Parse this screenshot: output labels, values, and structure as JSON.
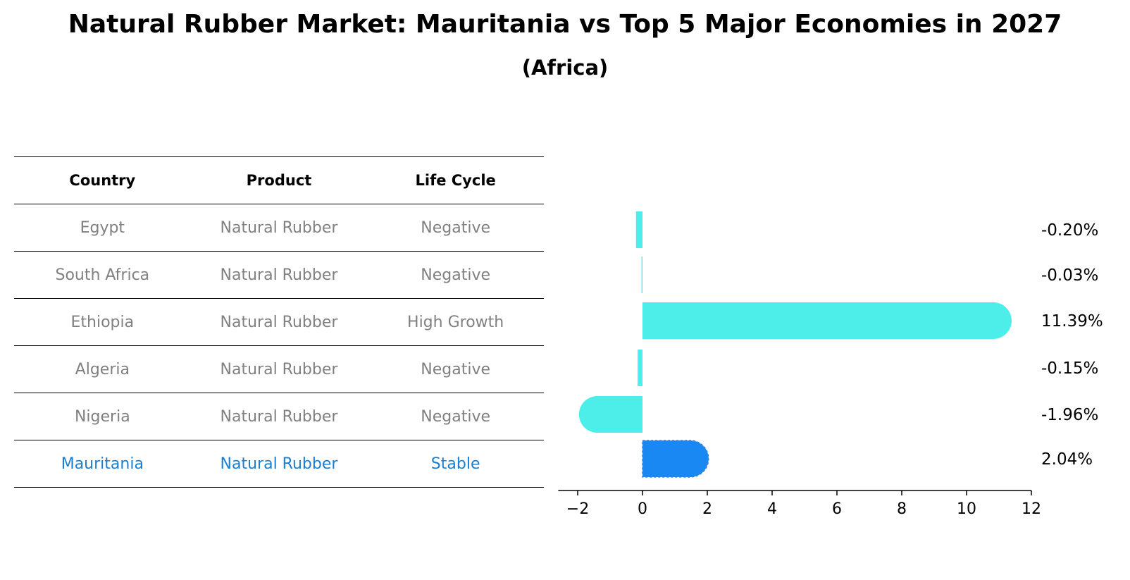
{
  "title": "Natural Rubber Market: Mauritania vs Top 5 Major Economies in 2027",
  "subtitle": "(Africa)",
  "table": {
    "headers": [
      "Country",
      "Product",
      "Life Cycle"
    ],
    "rows": [
      [
        "Egypt",
        "Natural Rubber",
        "Negative"
      ],
      [
        "South Africa",
        "Natural Rubber",
        "Negative"
      ],
      [
        "Ethiopia",
        "Natural Rubber",
        "High Growth"
      ],
      [
        "Algeria",
        "Natural Rubber",
        "Negative"
      ],
      [
        "Nigeria",
        "Natural Rubber",
        "Negative"
      ],
      [
        "Mauritania",
        "Natural Rubber",
        "Stable"
      ]
    ],
    "highlight_row": 5
  },
  "colors": {
    "bar": "#4deeea",
    "highlight_bar": "#1a88f2",
    "highlight_text": "#1a7fd3",
    "muted_text": "#808080"
  },
  "chart_data": {
    "type": "bar",
    "orientation": "horizontal",
    "categories": [
      "Egypt",
      "South Africa",
      "Ethiopia",
      "Algeria",
      "Nigeria",
      "Mauritania"
    ],
    "values": [
      -0.2,
      -0.03,
      11.39,
      -0.15,
      -1.96,
      2.04
    ],
    "labels": [
      "-0.20%",
      "-0.03%",
      "11.39%",
      "-0.15%",
      "-1.96%",
      "2.04%"
    ],
    "xlim": [
      -2.6,
      12
    ],
    "xticks": [
      -2,
      0,
      2,
      4,
      6,
      8,
      10,
      12
    ],
    "xtick_labels": [
      "−2",
      "0",
      "2",
      "4",
      "6",
      "8",
      "10",
      "12"
    ],
    "highlight_index": 5,
    "grid": false
  }
}
